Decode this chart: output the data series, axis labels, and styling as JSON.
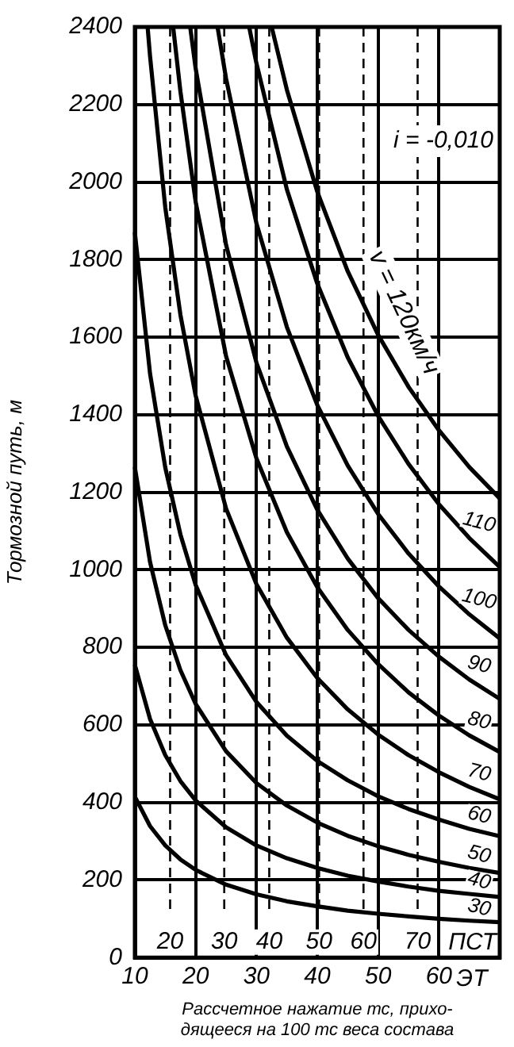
{
  "chart_data": {
    "type": "line",
    "xlabel": "Рассчетное нажатие тс, прихо-\nдящееся на 100 тс веса состава",
    "ylabel": "Тормозной путь, м",
    "xlim": [
      10,
      70
    ],
    "xticks": [
      10,
      20,
      30,
      40,
      50,
      60
    ],
    "ylim": [
      0,
      2400
    ],
    "yticks": [
      0,
      200,
      400,
      600,
      800,
      1000,
      1200,
      1400,
      1600,
      1800,
      2000,
      2200,
      2400
    ],
    "grid": true,
    "marker": "none",
    "line_style": "solid",
    "legend": false,
    "annotations": [
      "i = -0,010",
      "ЭТ",
      "ПСТ",
      {
        "text": "20",
        "x": 15.8,
        "y": 40
      },
      {
        "text": "30",
        "x": 24.7,
        "y": 40
      },
      {
        "text": "40",
        "x": 32.1,
        "y": 40
      },
      {
        "text": "50",
        "x": 40.3,
        "y": 40
      },
      {
        "text": "60",
        "x": 47.6,
        "y": 40
      },
      {
        "text": "70",
        "x": 56.5,
        "y": 40
      }
    ],
    "ref_lines": [
      {
        "axis": "x",
        "value": 15.8,
        "line_style": "dashed"
      },
      {
        "axis": "x",
        "value": 24.7,
        "line_style": "dashed"
      },
      {
        "axis": "x",
        "value": 32.1,
        "line_style": "dashed"
      },
      {
        "axis": "x",
        "value": 40.3,
        "line_style": "dashed"
      },
      {
        "axis": "x",
        "value": 47.6,
        "line_style": "dashed"
      },
      {
        "axis": "x",
        "value": 56.5,
        "line_style": "dashed"
      }
    ],
    "series": [
      {
        "name": "30",
        "color": "#000000",
        "x": [
          10,
          12.5,
          15,
          17.5,
          20,
          25,
          30,
          35,
          40,
          45,
          50,
          55,
          60,
          65,
          70
        ],
        "values": [
          415,
          339,
          289,
          253,
          226,
          188,
          163,
          145,
          132,
          121,
          113,
          106,
          100,
          95,
          91
        ]
      },
      {
        "name": "40",
        "color": "#000000",
        "x": [
          10,
          12.5,
          15,
          17.5,
          20,
          25,
          30,
          35,
          40,
          45,
          50,
          55,
          60,
          65,
          70
        ],
        "values": [
          755,
          615,
          522,
          455,
          405,
          336,
          289,
          256,
          231,
          211,
          196,
          183,
          172,
          164,
          156
        ]
      },
      {
        "name": "50",
        "color": "#000000",
        "x": [
          10,
          12.5,
          15,
          17.5,
          20,
          25,
          30,
          35,
          40,
          45,
          50,
          55,
          60,
          65,
          70
        ],
        "values": [
          1265,
          1020,
          857,
          741,
          654,
          532,
          450,
          392,
          348,
          314,
          287,
          265,
          247,
          231,
          218
        ]
      },
      {
        "name": "60",
        "color": "#000000",
        "x": [
          10,
          12.5,
          15,
          17.5,
          20,
          25,
          30,
          35,
          40,
          45,
          50,
          55,
          60,
          65,
          70
        ],
        "values": [
          1870,
          1506,
          1264,
          1091,
          961,
          780,
          659,
          572,
          507,
          457,
          416,
          383,
          356,
          332,
          313
        ]
      },
      {
        "name": "70",
        "color": "#000000",
        "x": [
          12.1,
          12.5,
          15,
          17.5,
          20,
          25,
          30,
          35,
          40,
          45,
          50,
          55,
          60,
          65,
          70
        ],
        "values": [
          2400,
          2324,
          1935,
          1657,
          1449,
          1158,
          963,
          825,
          721,
          640,
          575,
          522,
          478,
          440,
          408
        ]
      },
      {
        "name": "80",
        "color": "#000000",
        "x": [
          16.3,
          17.5,
          20,
          25,
          30,
          35,
          40,
          45,
          50,
          55,
          60,
          65,
          70
        ],
        "values": [
          2400,
          2233,
          1949,
          1551,
          1287,
          1097,
          955,
          845,
          757,
          684,
          624,
          573,
          530
        ]
      },
      {
        "name": "90",
        "color": "#000000",
        "x": [
          19.1,
          20,
          25,
          30,
          35,
          40,
          45,
          50,
          55,
          60,
          65,
          70
        ],
        "values": [
          2400,
          2293,
          1838,
          1534,
          1318,
          1155,
          1029,
          927,
          845,
          776,
          717,
          667
        ]
      },
      {
        "name": "100",
        "color": "#000000",
        "x": [
          23.6,
          25,
          30,
          35,
          40,
          45,
          50,
          55,
          60,
          65,
          70
        ],
        "values": [
          2400,
          2267,
          1893,
          1626,
          1425,
          1269,
          1144,
          1042,
          957,
          885,
          823
        ]
      },
      {
        "name": "110",
        "color": "#000000",
        "x": [
          28.8,
          30,
          35,
          40,
          45,
          50,
          55,
          60,
          65,
          70
        ],
        "values": [
          2400,
          2306,
          1981,
          1738,
          1548,
          1397,
          1273,
          1169,
          1082,
          1007
        ]
      },
      {
        "name": "v = 120км/ч",
        "color": "#000000",
        "x": [
          32.5,
          35,
          40,
          45,
          50,
          55,
          60,
          65,
          70
        ],
        "values": [
          2400,
          2238,
          1975,
          1770,
          1606,
          1472,
          1360,
          1265,
          1184
        ]
      }
    ]
  }
}
